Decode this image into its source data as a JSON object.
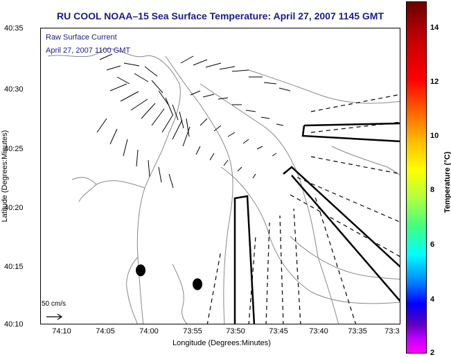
{
  "title": "RU COOL  NOAA–15  Sea Surface Temperature:  April 27, 2007 1145 GMT",
  "legend": {
    "line1": "Raw Surface Current",
    "line2": "April 27, 2007 1100 GMT"
  },
  "scale": {
    "label": "50 cm/s"
  },
  "axes": {
    "xlabel": "Longitude (Degrees:Minutes)",
    "ylabel": "Latitude (Degrees:Minutes)",
    "xticks": [
      "74:10",
      "74:05",
      "74:00",
      "73:55",
      "73:50",
      "73:45",
      "73:40",
      "73:35",
      "73:3"
    ],
    "yticks": [
      "40:35",
      "40:30",
      "40:25",
      "40:20",
      "40:15",
      "40:10"
    ]
  },
  "colorbar": {
    "label": "Temperature (°C)",
    "ticks": [
      "14",
      "12",
      "10",
      "8",
      "6",
      "4",
      "2"
    ]
  },
  "colors": {
    "title": "#1a1a8c",
    "vectors": "#000000",
    "contours": "#888888"
  }
}
